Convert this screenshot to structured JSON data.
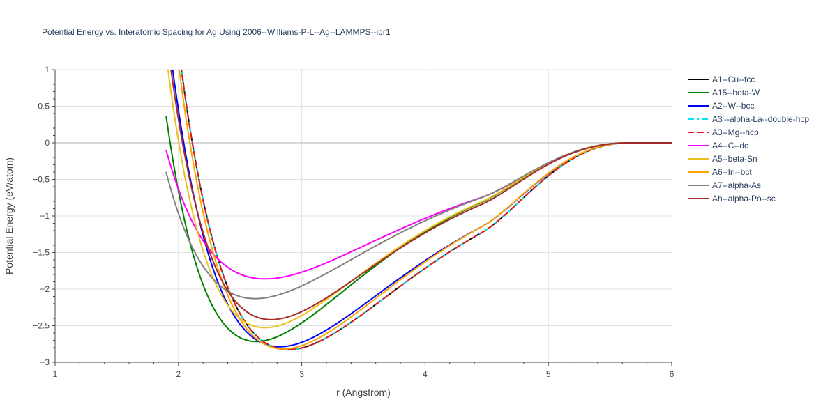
{
  "chart_data": {
    "type": "line",
    "title": "Potential Energy vs. Interatomic Spacing for Ag Using 2006--Williams-P-L--Ag--LAMMPS--ipr1",
    "xlabel": "r (Angstrom)",
    "ylabel": "Potential Energy (eV/atom)",
    "xlim": [
      1,
      6
    ],
    "ylim": [
      -3,
      1
    ],
    "xticks": [
      1,
      2,
      3,
      4,
      5,
      6
    ],
    "yticks": [
      1,
      0.5,
      0,
      -0.5,
      -1,
      -1.5,
      -2,
      -2.5,
      -3
    ],
    "ytick_labels": [
      "1",
      "0.5",
      "0",
      "−0.5",
      "−1",
      "−1.5",
      "−2",
      "−2.5",
      "−3"
    ],
    "grid": true,
    "legend_position": "top-right",
    "series": [
      {
        "name": "A1--Cu--fcc",
        "color": "#000000",
        "dash": "solid",
        "r0": 2.89,
        "E0": -2.85,
        "width": 0.78,
        "shift": 0.03
      },
      {
        "name": "A15--beta-W",
        "color": "#008000",
        "dash": "solid",
        "r0": 2.63,
        "E0": -2.74,
        "width": 0.7,
        "shift": 0.03
      },
      {
        "name": "A2--W--bcc",
        "color": "#0000ff",
        "dash": "solid",
        "r0": 2.82,
        "E0": -2.81,
        "width": 0.78,
        "shift": 0.03
      },
      {
        "name": "A3'--alpha-La--double-hcp",
        "color": "#00e5ee",
        "dash": "dashdot",
        "r0": 2.89,
        "E0": -2.85,
        "width": 0.78,
        "shift": 0.03
      },
      {
        "name": "A3--Mg--hcp",
        "color": "#e41a1c",
        "dash": "dash",
        "r0": 2.89,
        "E0": -2.85,
        "width": 0.78,
        "shift": 0.03
      },
      {
        "name": "A4--C--dc",
        "color": "#ff00ff",
        "dash": "solid",
        "r0": 2.7,
        "E0": -1.88,
        "width": 0.82,
        "shift": 0.025
      },
      {
        "name": "A5--beta-Sn",
        "color": "#e8c21c",
        "dash": "solid",
        "r0": 2.7,
        "E0": -2.55,
        "width": 0.7,
        "shift": 0.03
      },
      {
        "name": "A6--In--bct",
        "color": "#ffa500",
        "dash": "solid",
        "r0": 2.85,
        "E0": -2.84,
        "width": 0.76,
        "shift": 0.03
      },
      {
        "name": "A7--alpha-As",
        "color": "#808080",
        "dash": "solid",
        "r0": 2.62,
        "E0": -2.15,
        "width": 0.78,
        "shift": 0.025
      },
      {
        "name": "Ah--alpha-Po--sc",
        "color": "#a52a2a",
        "dash": "solid",
        "r0": 2.75,
        "E0": -2.44,
        "width": 0.72,
        "shift": 0.03
      }
    ]
  }
}
